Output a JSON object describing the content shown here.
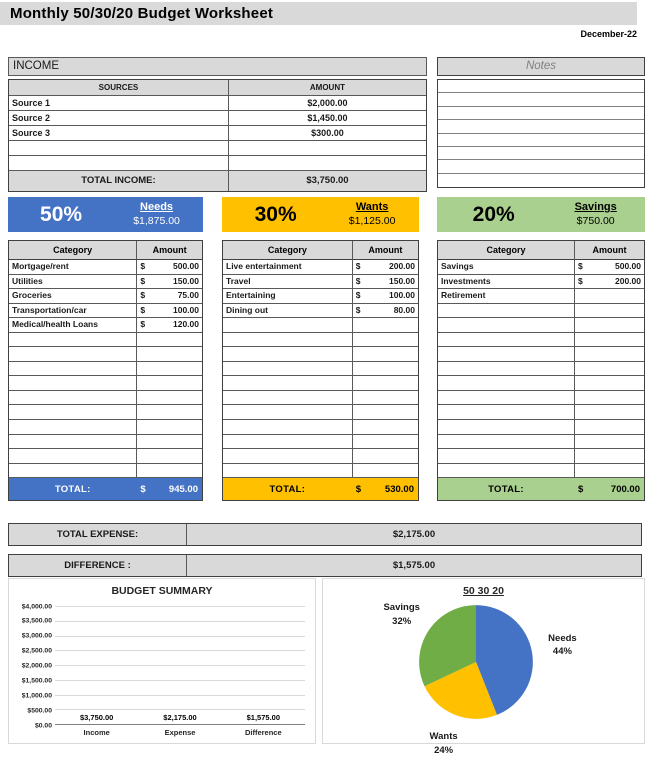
{
  "page": {
    "title": "Monthly 50/30/20 Budget Worksheet",
    "date": "December-22"
  },
  "income": {
    "section_label": "INCOME",
    "columns": {
      "sources": "SOURCES",
      "amount": "AMOUNT"
    },
    "rows": [
      {
        "source": "Source 1",
        "amount": "$2,000.00"
      },
      {
        "source": "Source 2",
        "amount": "$1,450.00"
      },
      {
        "source": "Source 3",
        "amount": "$300.00"
      },
      {
        "source": "",
        "amount": ""
      },
      {
        "source": "",
        "amount": ""
      }
    ],
    "total_label": "TOTAL INCOME:",
    "total_amount": "$3,750.00"
  },
  "notes": {
    "header": "Notes",
    "row_count": 8
  },
  "buckets": [
    {
      "id": "needs",
      "percent": "50%",
      "name": "Needs",
      "allocation": "$1,875.00",
      "color": "#4472C4",
      "columns": {
        "category": "Category",
        "amount": "Amount"
      },
      "rows": [
        {
          "category": "Mortgage/rent",
          "currency": "$",
          "amount": "500.00"
        },
        {
          "category": "Utilities",
          "currency": "$",
          "amount": "150.00"
        },
        {
          "category": "Groceries",
          "currency": "$",
          "amount": "75.00"
        },
        {
          "category": "Transportation/car",
          "currency": "$",
          "amount": "100.00"
        },
        {
          "category": "Medical/health Loans",
          "currency": "$",
          "amount": "120.00"
        },
        {
          "category": "",
          "currency": "",
          "amount": ""
        },
        {
          "category": "",
          "currency": "",
          "amount": ""
        },
        {
          "category": "",
          "currency": "",
          "amount": ""
        },
        {
          "category": "",
          "currency": "",
          "amount": ""
        },
        {
          "category": "",
          "currency": "",
          "amount": ""
        },
        {
          "category": "",
          "currency": "",
          "amount": ""
        },
        {
          "category": "",
          "currency": "",
          "amount": ""
        },
        {
          "category": "",
          "currency": "",
          "amount": ""
        },
        {
          "category": "",
          "currency": "",
          "amount": ""
        },
        {
          "category": "",
          "currency": "",
          "amount": ""
        }
      ],
      "total_label": "TOTAL:",
      "total_currency": "$",
      "total_amount": "945.00"
    },
    {
      "id": "wants",
      "percent": "30%",
      "name": "Wants",
      "allocation": "$1,125.00",
      "color": "#FFC000",
      "columns": {
        "category": "Category",
        "amount": "Amount"
      },
      "rows": [
        {
          "category": "Live entertainment",
          "currency": "$",
          "amount": "200.00"
        },
        {
          "category": "Travel",
          "currency": "$",
          "amount": "150.00"
        },
        {
          "category": "Entertaining",
          "currency": "$",
          "amount": "100.00"
        },
        {
          "category": "Dining out",
          "currency": "$",
          "amount": "80.00"
        },
        {
          "category": "",
          "currency": "",
          "amount": ""
        },
        {
          "category": "",
          "currency": "",
          "amount": ""
        },
        {
          "category": "",
          "currency": "",
          "amount": ""
        },
        {
          "category": "",
          "currency": "",
          "amount": ""
        },
        {
          "category": "",
          "currency": "",
          "amount": ""
        },
        {
          "category": "",
          "currency": "",
          "amount": ""
        },
        {
          "category": "",
          "currency": "",
          "amount": ""
        },
        {
          "category": "",
          "currency": "",
          "amount": ""
        },
        {
          "category": "",
          "currency": "",
          "amount": ""
        },
        {
          "category": "",
          "currency": "",
          "amount": ""
        },
        {
          "category": "",
          "currency": "",
          "amount": ""
        }
      ],
      "total_label": "TOTAL:",
      "total_currency": "$",
      "total_amount": "530.00"
    },
    {
      "id": "savings",
      "percent": "20%",
      "name": "Savings",
      "allocation": "$750.00",
      "color": "#A9D08E",
      "columns": {
        "category": "Category",
        "amount": "Amount"
      },
      "rows": [
        {
          "category": "Savings",
          "currency": "$",
          "amount": "500.00"
        },
        {
          "category": "Investments",
          "currency": "$",
          "amount": "200.00"
        },
        {
          "category": "Retirement",
          "currency": "",
          "amount": ""
        },
        {
          "category": "",
          "currency": "",
          "amount": ""
        },
        {
          "category": "",
          "currency": "",
          "amount": ""
        },
        {
          "category": "",
          "currency": "",
          "amount": ""
        },
        {
          "category": "",
          "currency": "",
          "amount": ""
        },
        {
          "category": "",
          "currency": "",
          "amount": ""
        },
        {
          "category": "",
          "currency": "",
          "amount": ""
        },
        {
          "category": "",
          "currency": "",
          "amount": ""
        },
        {
          "category": "",
          "currency": "",
          "amount": ""
        },
        {
          "category": "",
          "currency": "",
          "amount": ""
        },
        {
          "category": "",
          "currency": "",
          "amount": ""
        },
        {
          "category": "",
          "currency": "",
          "amount": ""
        },
        {
          "category": "",
          "currency": "",
          "amount": ""
        }
      ],
      "total_label": "TOTAL:",
      "total_currency": "$",
      "total_amount": "700.00"
    }
  ],
  "summary": {
    "total_expense_label": "TOTAL EXPENSE:",
    "total_expense_value": "$2,175.00",
    "difference_label": "DIFFERENCE :",
    "difference_value": "$1,575.00"
  },
  "chart_data": [
    {
      "type": "bar",
      "title": "BUDGET SUMMARY",
      "categories": [
        "Income",
        "Expense",
        "Difference"
      ],
      "values": [
        3750,
        2175,
        1575
      ],
      "data_labels": [
        "$3,750.00",
        "$2,175.00",
        "$1,575.00"
      ],
      "xlabel": "",
      "ylabel": "",
      "ylim": [
        0,
        4000
      ],
      "ytick_step": 500,
      "ytick_labels": [
        "$0.00",
        "$500.00",
        "$1,000.00",
        "$1,500.00",
        "$2,000.00",
        "$2,500.00",
        "$3,000.00",
        "$3,500.00",
        "$4,000.00"
      ],
      "bar_color": "#ED7D31",
      "grid": true,
      "legend": false
    },
    {
      "type": "pie",
      "title": "50 30 20",
      "labels": [
        "Needs",
        "Wants",
        "Savings"
      ],
      "values": [
        44,
        24,
        32
      ],
      "pct_labels": [
        "44%",
        "24%",
        "32%"
      ],
      "colors": [
        "#4472C4",
        "#FFC000",
        "#70AD47"
      ],
      "start_angle": "12-oclock",
      "direction": "clockwise",
      "legend": false
    }
  ]
}
